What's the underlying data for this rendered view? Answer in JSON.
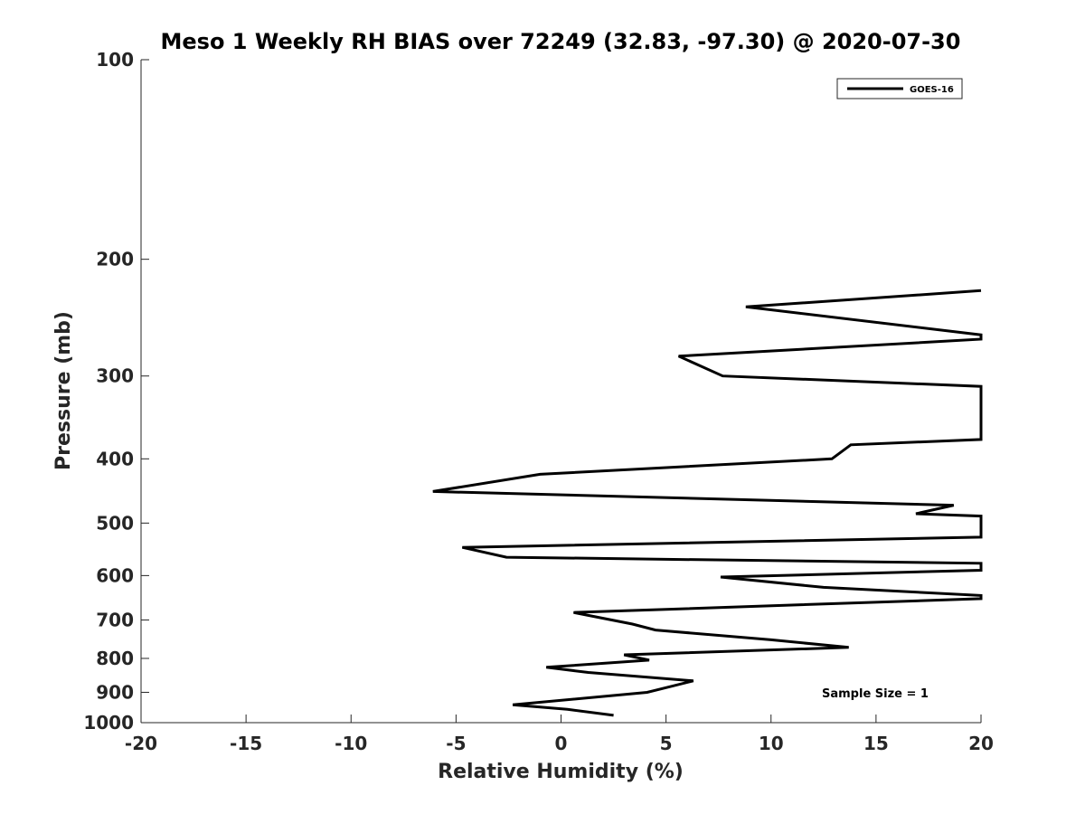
{
  "chart_data": {
    "type": "line",
    "title": "Meso 1 Weekly RH BIAS over 72249 (32.83, -97.30) @ 2020-07-30",
    "xlabel": "Relative Humidity (%)",
    "ylabel": "Pressure (mb)",
    "xlim": [
      -20,
      20
    ],
    "ylim": [
      100,
      1000
    ],
    "yscale": "log",
    "y_reversed": true,
    "x_ticks": [
      "-20",
      "-15",
      "-10",
      "-5",
      "0",
      "5",
      "10",
      "15",
      "20"
    ],
    "y_ticks": [
      "100",
      "200",
      "300",
      "400",
      "500",
      "600",
      "700",
      "800",
      "900",
      "1000"
    ],
    "grid": false,
    "legend": {
      "placement": "top-right",
      "entries": [
        "GOES-16"
      ]
    },
    "annotation": "Sample Size = 1",
    "series": [
      {
        "name": "GOES-16",
        "color": "#000000",
        "points": [
          {
            "x": 2.5,
            "p": 975
          },
          {
            "x": 0.3,
            "p": 955
          },
          {
            "x": -2.3,
            "p": 940
          },
          {
            "x": 4.1,
            "p": 900
          },
          {
            "x": 6.3,
            "p": 865
          },
          {
            "x": 1.3,
            "p": 840
          },
          {
            "x": -0.7,
            "p": 825
          },
          {
            "x": 4.2,
            "p": 805
          },
          {
            "x": 3.0,
            "p": 790
          },
          {
            "x": 13.7,
            "p": 770
          },
          {
            "x": 10.0,
            "p": 750
          },
          {
            "x": 4.5,
            "p": 725
          },
          {
            "x": 3.4,
            "p": 710
          },
          {
            "x": 0.6,
            "p": 682
          },
          {
            "x": 20,
            "p": 650
          },
          {
            "x": 20,
            "p": 643
          },
          {
            "x": 12.5,
            "p": 625
          },
          {
            "x": 7.6,
            "p": 603
          },
          {
            "x": 20,
            "p": 589
          },
          {
            "x": 20,
            "p": 575
          },
          {
            "x": -2.6,
            "p": 563
          },
          {
            "x": -4.7,
            "p": 544
          },
          {
            "x": 20,
            "p": 525
          },
          {
            "x": 20,
            "p": 488
          },
          {
            "x": 16.9,
            "p": 484
          },
          {
            "x": 18.7,
            "p": 470
          },
          {
            "x": -6.1,
            "p": 448
          },
          {
            "x": -1.0,
            "p": 422
          },
          {
            "x": 12.9,
            "p": 400
          },
          {
            "x": 13.8,
            "p": 381
          },
          {
            "x": 20,
            "p": 374
          },
          {
            "x": 20,
            "p": 311
          },
          {
            "x": 7.7,
            "p": 300
          },
          {
            "x": 5.6,
            "p": 280
          },
          {
            "x": 20,
            "p": 264
          },
          {
            "x": 20,
            "p": 260
          },
          {
            "x": 8.8,
            "p": 236
          },
          {
            "x": 20,
            "p": 223
          }
        ]
      }
    ]
  }
}
